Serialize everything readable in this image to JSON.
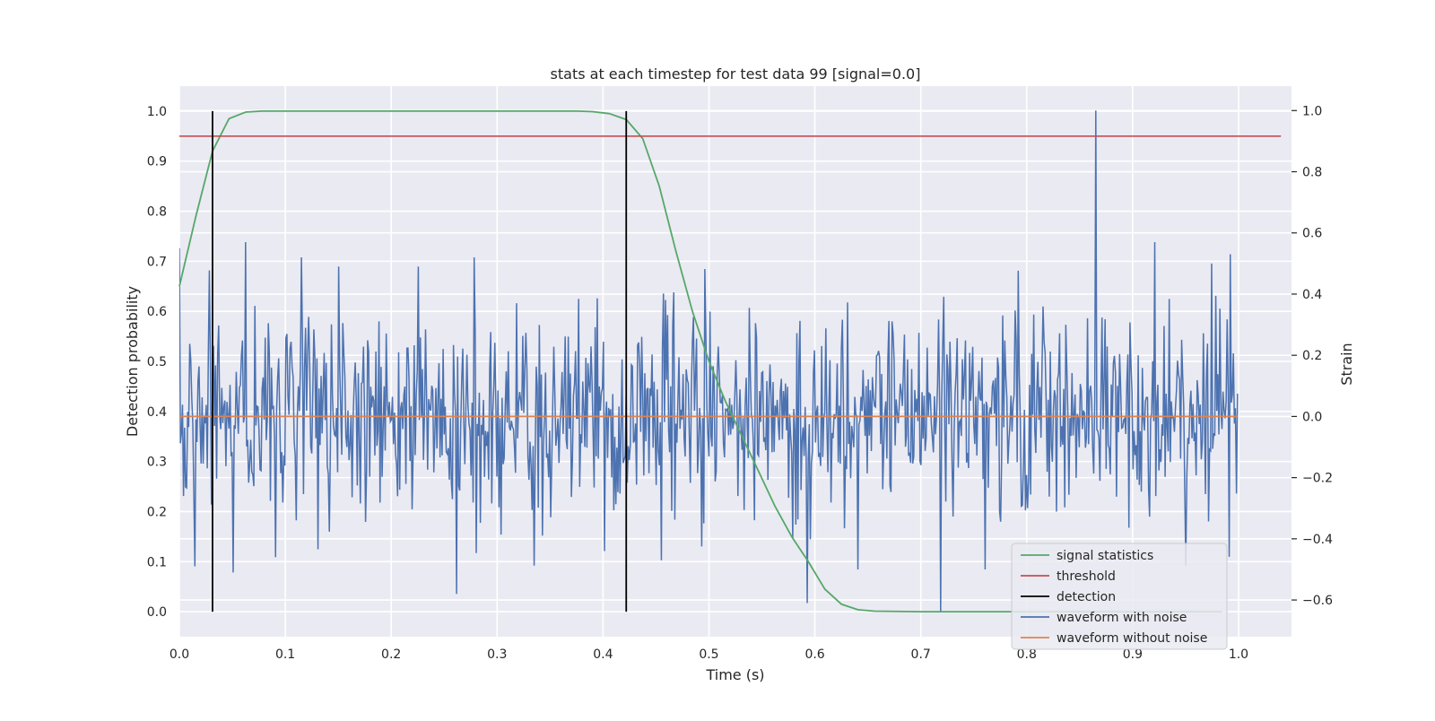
{
  "chart_data": {
    "type": "line",
    "title": "stats at each timestep for test data 99 [signal=0.0]",
    "xlabel": "Time (s)",
    "ylabel": "Detection probability",
    "ylabel_right": "Strain",
    "xlim": [
      0.0,
      1.05
    ],
    "ylim": [
      -0.05,
      1.05
    ],
    "ylim_right": [
      -0.72,
      1.08
    ],
    "xticks": [
      "0.0",
      "0.1",
      "0.2",
      "0.3",
      "0.4",
      "0.5",
      "0.6",
      "0.7",
      "0.8",
      "0.9",
      "1.0"
    ],
    "yticks": [
      "0.0",
      "0.1",
      "0.2",
      "0.3",
      "0.4",
      "0.5",
      "0.6",
      "0.7",
      "0.8",
      "0.9",
      "1.0"
    ],
    "yticks_right": [
      "−0.6",
      "−0.4",
      "−0.2",
      "0.0",
      "0.2",
      "0.4",
      "0.6",
      "0.8",
      "1.0"
    ],
    "grid": true,
    "legend_position": "lower-right",
    "background": "#eaeaf2",
    "series": [
      {
        "name": "signal statistics",
        "color": "#55a868",
        "axis": "left",
        "x": [
          0.0,
          0.0156,
          0.0313,
          0.0469,
          0.0625,
          0.0781,
          0.0938,
          0.1094,
          0.125,
          0.2,
          0.3,
          0.35,
          0.375,
          0.39,
          0.406,
          0.422,
          0.4375,
          0.4531,
          0.4688,
          0.4844,
          0.5,
          0.5156,
          0.5313,
          0.5469,
          0.5625,
          0.5781,
          0.5938,
          0.6094,
          0.625,
          0.6406,
          0.6563,
          0.7,
          0.8,
          0.9,
          0.9844
        ],
        "y": [
          0.65,
          0.79,
          0.92,
          0.985,
          0.998,
          1.0,
          1.0,
          1.0,
          1.0,
          1.0,
          1.0,
          1.0,
          1.0,
          0.999,
          0.995,
          0.983,
          0.945,
          0.85,
          0.72,
          0.6,
          0.5,
          0.42,
          0.35,
          0.28,
          0.21,
          0.15,
          0.1,
          0.045,
          0.015,
          0.004,
          0.001,
          0.0,
          0.0,
          0.0,
          0.0
        ]
      },
      {
        "name": "threshold",
        "color": "#c44e52",
        "axis": "left",
        "x": [
          0.0,
          1.04
        ],
        "y": [
          0.95,
          0.95
        ]
      },
      {
        "name": "detection",
        "color": "#000000",
        "axis": "left",
        "segments": [
          {
            "x": 0.0313,
            "y": [
              0.0,
              1.0
            ]
          },
          {
            "x": 0.4219,
            "y": [
              0.0,
              1.0
            ]
          }
        ]
      },
      {
        "name": "waveform with noise",
        "color": "#4c72b0",
        "axis": "right",
        "x_range": [
          0.0,
          0.999
        ],
        "sample_rate_hz": 1024,
        "amplitude_std": 0.16,
        "spikes": [
          {
            "x": 0.8652,
            "y": 1.0
          },
          {
            "x": 0.7187,
            "y": -0.64
          },
          {
            "x": 0.5927,
            "y": -0.61
          },
          {
            "x": 0.2617,
            "y": -0.58
          },
          {
            "x": 0.0625,
            "y": 0.57
          },
          {
            "x": 0.2783,
            "y": 0.52
          },
          {
            "x": 0.9208,
            "y": 0.57
          },
          {
            "x": 0.0146,
            "y": -0.49
          },
          {
            "x": 0.0508,
            "y": -0.51
          },
          {
            "x": 0.0908,
            "y": -0.46
          },
          {
            "x": 0.1153,
            "y": 0.52
          },
          {
            "x": 0.1504,
            "y": 0.49
          },
          {
            "x": 0.2254,
            "y": 0.49
          },
          {
            "x": 0.4014,
            "y": -0.44
          },
          {
            "x": 0.4551,
            "y": -0.47
          },
          {
            "x": 0.6408,
            "y": -0.5
          },
          {
            "x": 0.9746,
            "y": 0.5
          }
        ]
      },
      {
        "name": "waveform without noise",
        "color": "#dd8452",
        "axis": "right",
        "x": [
          0.0,
          0.999
        ],
        "y": [
          0.0,
          0.0
        ]
      }
    ]
  }
}
